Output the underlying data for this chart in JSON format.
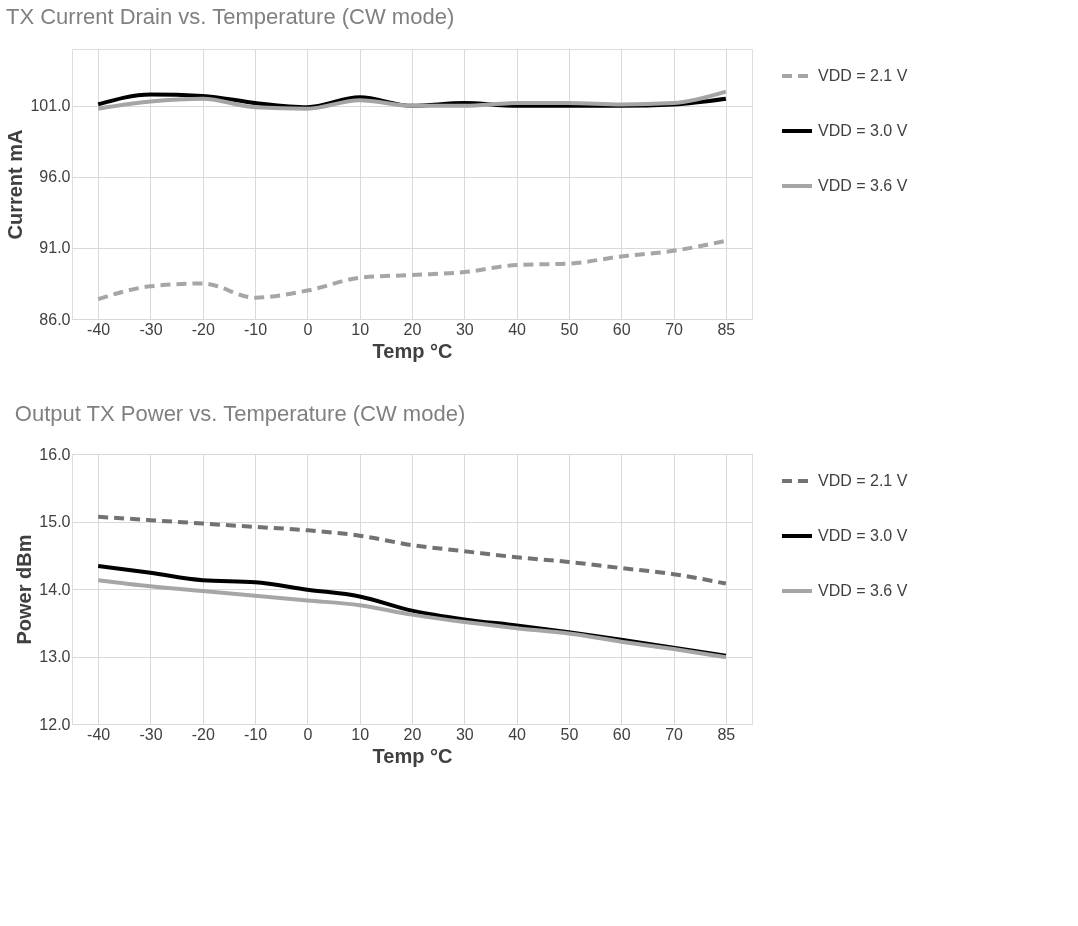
{
  "chart_data": [
    {
      "type": "line",
      "title": "TX Current Drain vs. Temperature (CW mode)",
      "xlabel": "Temp °C",
      "ylabel": "Current mA",
      "categories": [
        "-40",
        "-30",
        "-20",
        "-10",
        "0",
        "10",
        "20",
        "30",
        "40",
        "50",
        "60",
        "70",
        "85"
      ],
      "series": [
        {
          "name": "VDD = 2.1 V",
          "color": "#a6a6a6",
          "line_style": "dashed",
          "values": [
            87.4,
            88.3,
            88.5,
            87.5,
            88.0,
            88.9,
            89.1,
            89.3,
            89.8,
            89.9,
            90.4,
            90.8,
            91.5
          ]
        },
        {
          "name": "VDD = 3.0 V",
          "color": "#000000",
          "line_style": "solid",
          "values": [
            101.1,
            101.8,
            101.7,
            101.2,
            100.9,
            101.6,
            101.0,
            101.2,
            101.0,
            101.0,
            101.0,
            101.1,
            101.5
          ]
        },
        {
          "name": "VDD = 3.6 V",
          "color": "#a5a5a5",
          "line_style": "solid",
          "values": [
            100.8,
            101.3,
            101.5,
            100.9,
            100.8,
            101.4,
            101.0,
            101.0,
            101.2,
            101.2,
            101.1,
            101.2,
            102.0
          ]
        }
      ],
      "ylim": [
        86,
        105
      ],
      "yticks": [
        {
          "value": 86,
          "label": "86.0"
        },
        {
          "value": 91,
          "label": "91.0"
        },
        {
          "value": 96,
          "label": "96.0"
        },
        {
          "value": 101,
          "label": "101.0"
        }
      ],
      "grid": true,
      "legend": "right"
    },
    {
      "type": "line",
      "title": "Output TX Power vs. Temperature (CW mode)",
      "xlabel": "Temp °C",
      "ylabel": "Power dBm",
      "categories": [
        "-40",
        "-30",
        "-20",
        "-10",
        "0",
        "10",
        "20",
        "30",
        "40",
        "50",
        "60",
        "70",
        "85"
      ],
      "series": [
        {
          "name": "VDD = 2.1 V",
          "color": "#767171",
          "line_style": "dashed",
          "values": [
            15.07,
            15.02,
            14.97,
            14.92,
            14.87,
            14.79,
            14.65,
            14.56,
            14.47,
            14.4,
            14.31,
            14.22,
            14.08
          ]
        },
        {
          "name": "VDD = 3.0 V",
          "color": "#000000",
          "line_style": "solid",
          "values": [
            14.34,
            14.24,
            14.13,
            14.1,
            13.99,
            13.89,
            13.68,
            13.55,
            13.46,
            13.36,
            13.25,
            13.13,
            13.01
          ]
        },
        {
          "name": "VDD = 3.6 V",
          "color": "#a6a6a6",
          "line_style": "solid",
          "values": [
            14.13,
            14.04,
            13.97,
            13.9,
            13.83,
            13.76,
            13.62,
            13.51,
            13.42,
            13.34,
            13.22,
            13.11,
            12.99
          ]
        }
      ],
      "ylim": [
        12,
        16
      ],
      "yticks": [
        {
          "value": 12,
          "label": "12.0"
        },
        {
          "value": 13,
          "label": "13.0"
        },
        {
          "value": 14,
          "label": "14.0"
        },
        {
          "value": 15,
          "label": "15.0"
        },
        {
          "value": 16,
          "label": "16.0"
        }
      ],
      "grid": true,
      "legend": "right"
    }
  ]
}
